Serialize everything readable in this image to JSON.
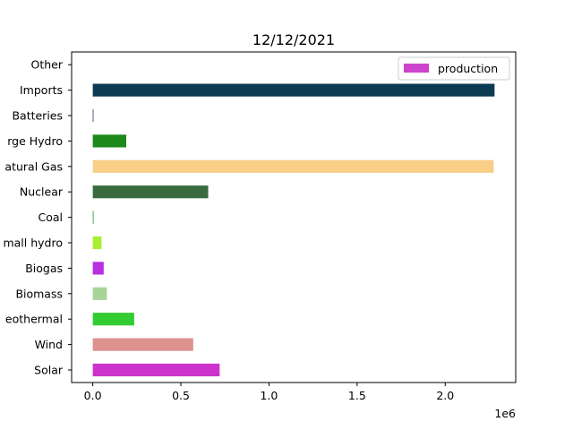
{
  "chart_data": {
    "type": "bar",
    "orientation": "horizontal",
    "title": "12/12/2021",
    "xlabel": "",
    "ylabel": "",
    "x_scale_label": "1e6",
    "xlim": [
      -120000,
      2400000
    ],
    "x_ticks": [
      0,
      500000,
      1000000,
      1500000,
      2000000
    ],
    "x_tick_labels": [
      "0.0",
      "0.5",
      "1.0",
      "1.5",
      "2.0"
    ],
    "categories": [
      "Solar",
      "Wind",
      "Geothermal",
      "Biomass",
      "Biogas",
      "Small hydro",
      "Coal",
      "Nuclear",
      "Natural Gas",
      "Large Hydro",
      "Batteries",
      "Imports",
      "Other"
    ],
    "category_labels": [
      "Solar",
      "Wind",
      "eothermal",
      "Biomass",
      "Biogas",
      "mall hydro",
      "Coal",
      "Nuclear",
      "atural Gas",
      "rge Hydro",
      "Batteries",
      "Imports",
      "Other"
    ],
    "series": [
      {
        "name": "production",
        "values": [
          720000,
          570000,
          235000,
          80000,
          62000,
          50000,
          5000,
          655000,
          2275000,
          190000,
          3000,
          2280000,
          0
        ],
        "colors": [
          "#cc33cc",
          "#dd9290",
          "#33cc33",
          "#a8d49a",
          "#b830e0",
          "#aaee33",
          "#4aa84a",
          "#3a6b3f",
          "#f8ce88",
          "#1b8a1b",
          "#333366",
          "#0c3a52",
          "#ffffff"
        ]
      }
    ],
    "legend": {
      "position": "top-right",
      "label": "production",
      "color": "#cc44cc"
    },
    "grid": false
  }
}
